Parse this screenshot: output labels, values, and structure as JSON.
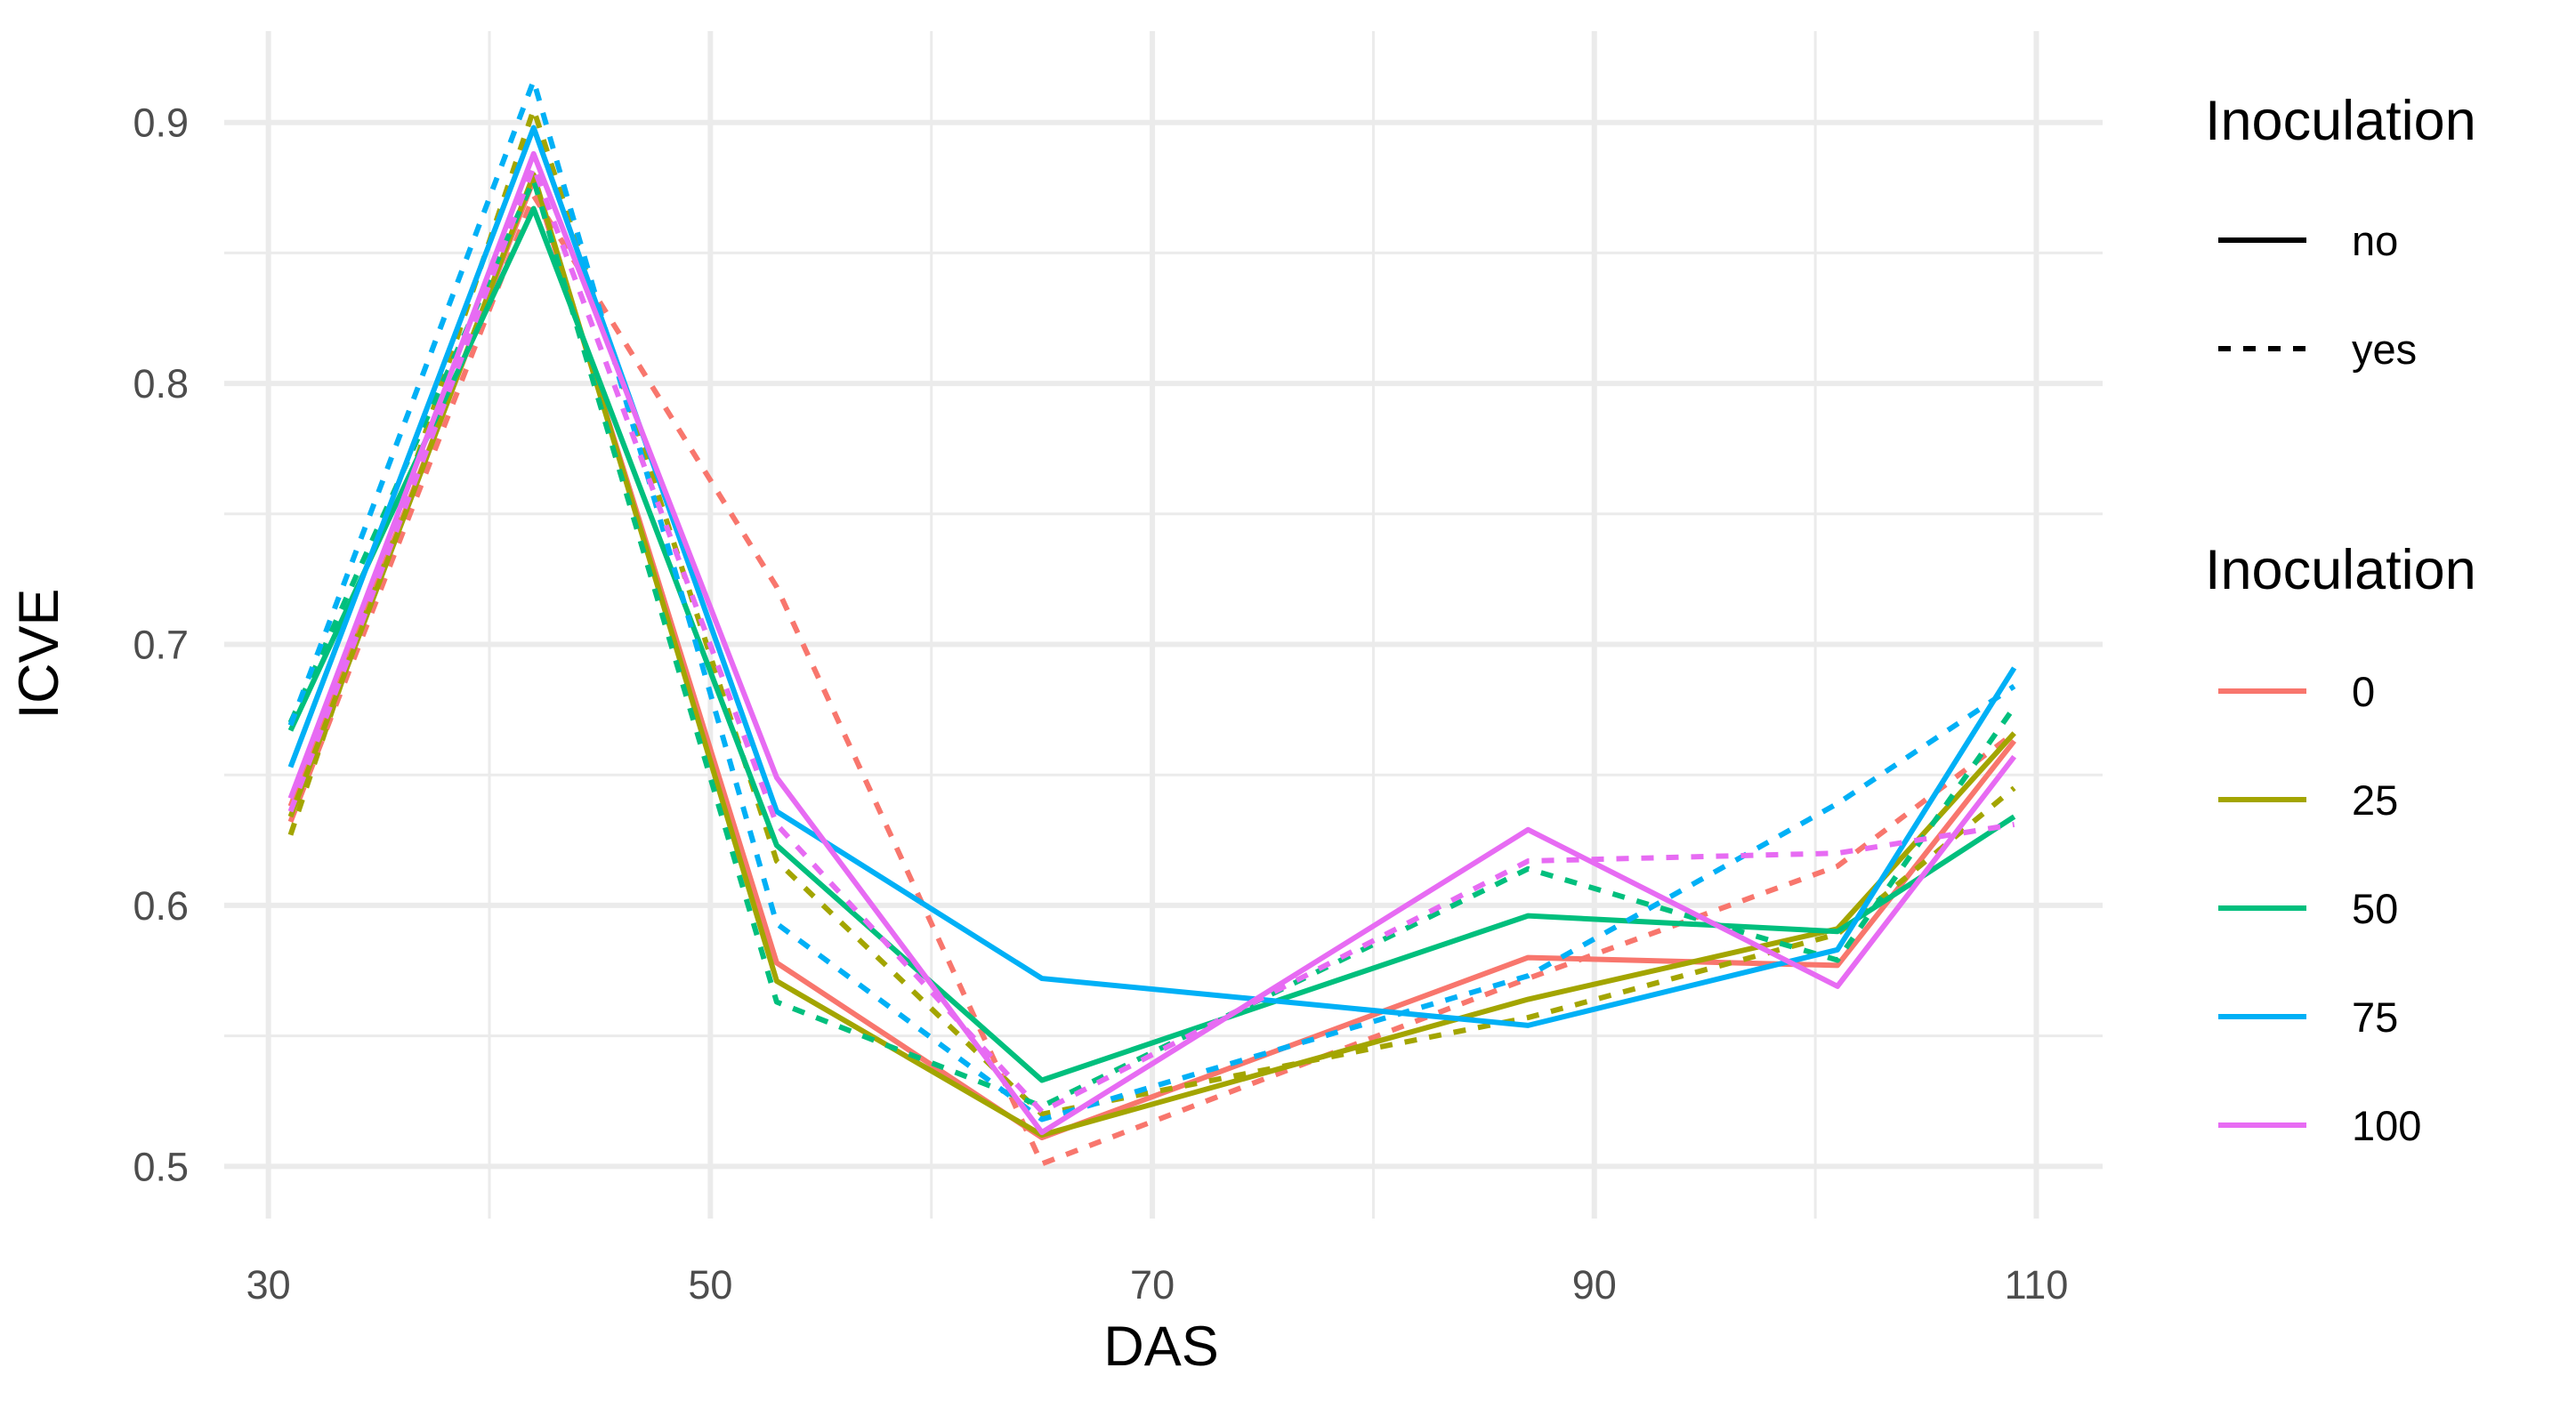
{
  "chart_data": {
    "type": "line",
    "xlabel": "DAS",
    "ylabel": "ICVE",
    "xlim": [
      28,
      113
    ],
    "ylim": [
      0.48,
      0.935
    ],
    "x_ticks": [
      30,
      50,
      70,
      90,
      110
    ],
    "x_minor_ticks": [
      40,
      60,
      80,
      100
    ],
    "y_ticks": [
      0.5,
      0.6,
      0.7,
      0.8,
      0.9
    ],
    "y_minor_ticks": [
      0.55,
      0.65,
      0.75,
      0.85
    ],
    "x": [
      31,
      42,
      53,
      65,
      87,
      101,
      109
    ],
    "grid": true,
    "legend_position": "right",
    "legends": [
      {
        "title": "Inoculation",
        "kind": "linetype",
        "entries": [
          {
            "label": "no",
            "dash": "solid"
          },
          {
            "label": "yes",
            "dash": "dashed"
          }
        ]
      },
      {
        "title": "Inoculation",
        "kind": "color",
        "entries": [
          {
            "label": "0",
            "color": "#F8766D"
          },
          {
            "label": "25",
            "color": "#A3A500"
          },
          {
            "label": "50",
            "color": "#00BF7D"
          },
          {
            "label": "75",
            "color": "#00B0F6"
          },
          {
            "label": "100",
            "color": "#E76BF3"
          }
        ]
      }
    ],
    "series": [
      {
        "dose": "0",
        "inoculation": "no",
        "color": "#F8766D",
        "dash": "solid",
        "values": [
          0.638,
          0.878,
          0.578,
          0.511,
          0.58,
          0.577,
          0.663
        ]
      },
      {
        "dose": "0",
        "inoculation": "yes",
        "color": "#F8766D",
        "dash": "dashed",
        "values": [
          0.632,
          0.872,
          0.722,
          0.501,
          0.572,
          0.615,
          0.666
        ]
      },
      {
        "dose": "25",
        "inoculation": "no",
        "color": "#A3A500",
        "dash": "solid",
        "values": [
          0.634,
          0.88,
          0.571,
          0.512,
          0.564,
          0.591,
          0.666
        ]
      },
      {
        "dose": "25",
        "inoculation": "yes",
        "color": "#A3A500",
        "dash": "dashed",
        "values": [
          0.627,
          0.905,
          0.617,
          0.52,
          0.557,
          0.589,
          0.645
        ]
      },
      {
        "dose": "50",
        "inoculation": "no",
        "color": "#00BF7D",
        "dash": "solid",
        "values": [
          0.667,
          0.867,
          0.623,
          0.533,
          0.596,
          0.59,
          0.634
        ]
      },
      {
        "dose": "50",
        "inoculation": "yes",
        "color": "#00BF7D",
        "dash": "dashed",
        "values": [
          0.67,
          0.878,
          0.563,
          0.523,
          0.614,
          0.579,
          0.676
        ]
      },
      {
        "dose": "75",
        "inoculation": "no",
        "color": "#00B0F6",
        "dash": "solid",
        "values": [
          0.653,
          0.898,
          0.636,
          0.572,
          0.554,
          0.583,
          0.691
        ]
      },
      {
        "dose": "75",
        "inoculation": "yes",
        "color": "#00B0F6",
        "dash": "dashed",
        "values": [
          0.669,
          0.916,
          0.593,
          0.518,
          0.573,
          0.639,
          0.684
        ]
      },
      {
        "dose": "100",
        "inoculation": "no",
        "color": "#E76BF3",
        "dash": "solid",
        "values": [
          0.641,
          0.888,
          0.649,
          0.513,
          0.629,
          0.569,
          0.657
        ]
      },
      {
        "dose": "100",
        "inoculation": "yes",
        "color": "#E76BF3",
        "dash": "dashed",
        "values": [
          0.636,
          0.883,
          0.631,
          0.521,
          0.617,
          0.62,
          0.631
        ]
      }
    ]
  }
}
